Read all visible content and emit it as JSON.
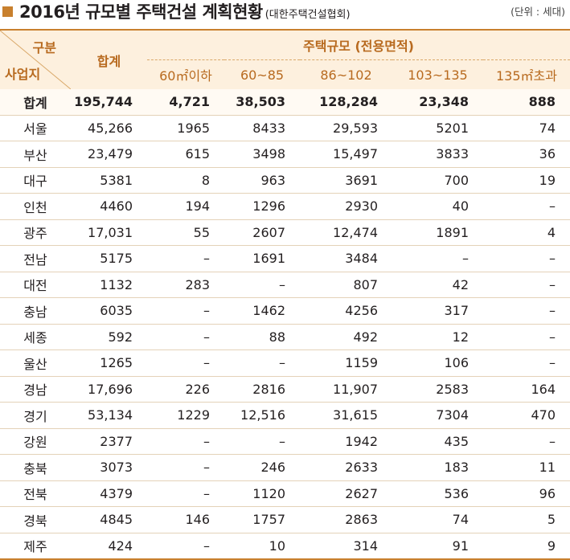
{
  "header": {
    "title": "2016년 규모별 주택건설 계획현황",
    "source": "(대한주택건설협회)",
    "unit": "(단위 : 세대)"
  },
  "table_head": {
    "corner_top": "구분",
    "corner_bottom": "사업지",
    "total": "합계",
    "size_group": "주택규모 (전용면적)",
    "sizes": [
      "60㎡이하",
      "60~85",
      "86~102",
      "103~135",
      "135㎡초과"
    ]
  },
  "rows": [
    {
      "region": "합계",
      "total": "195,744",
      "v": [
        "4,721",
        "38,503",
        "128,284",
        "23,348",
        "888"
      ]
    },
    {
      "region": "서울",
      "total": "45,266",
      "v": [
        "1965",
        "8433",
        "29,593",
        "5201",
        "74"
      ]
    },
    {
      "region": "부산",
      "total": "23,479",
      "v": [
        "615",
        "3498",
        "15,497",
        "3833",
        "36"
      ]
    },
    {
      "region": "대구",
      "total": "5381",
      "v": [
        "8",
        "963",
        "3691",
        "700",
        "19"
      ]
    },
    {
      "region": "인천",
      "total": "4460",
      "v": [
        "194",
        "1296",
        "2930",
        "40",
        "–"
      ]
    },
    {
      "region": "광주",
      "total": "17,031",
      "v": [
        "55",
        "2607",
        "12,474",
        "1891",
        "4"
      ]
    },
    {
      "region": "전남",
      "total": "5175",
      "v": [
        "–",
        "1691",
        "3484",
        "–",
        "–"
      ]
    },
    {
      "region": "대전",
      "total": "1132",
      "v": [
        "283",
        "–",
        "807",
        "42",
        "–"
      ]
    },
    {
      "region": "충남",
      "total": "6035",
      "v": [
        "–",
        "1462",
        "4256",
        "317",
        "–"
      ]
    },
    {
      "region": "세종",
      "total": "592",
      "v": [
        "–",
        "88",
        "492",
        "12",
        "–"
      ]
    },
    {
      "region": "울산",
      "total": "1265",
      "v": [
        "–",
        "–",
        "1159",
        "106",
        "–"
      ]
    },
    {
      "region": "경남",
      "total": "17,696",
      "v": [
        "226",
        "2816",
        "11,907",
        "2583",
        "164"
      ]
    },
    {
      "region": "경기",
      "total": "53,134",
      "v": [
        "1229",
        "12,516",
        "31,615",
        "7304",
        "470"
      ]
    },
    {
      "region": "강원",
      "total": "2377",
      "v": [
        "–",
        "–",
        "1942",
        "435",
        "–"
      ]
    },
    {
      "region": "충북",
      "total": "3073",
      "v": [
        "–",
        "246",
        "2633",
        "183",
        "11"
      ]
    },
    {
      "region": "전북",
      "total": "4379",
      "v": [
        "–",
        "1120",
        "2627",
        "536",
        "96"
      ]
    },
    {
      "region": "경북",
      "total": "4845",
      "v": [
        "146",
        "1757",
        "2863",
        "74",
        "5"
      ]
    },
    {
      "region": "제주",
      "total": "424",
      "v": [
        "–",
        "10",
        "314",
        "91",
        "9"
      ]
    }
  ]
}
